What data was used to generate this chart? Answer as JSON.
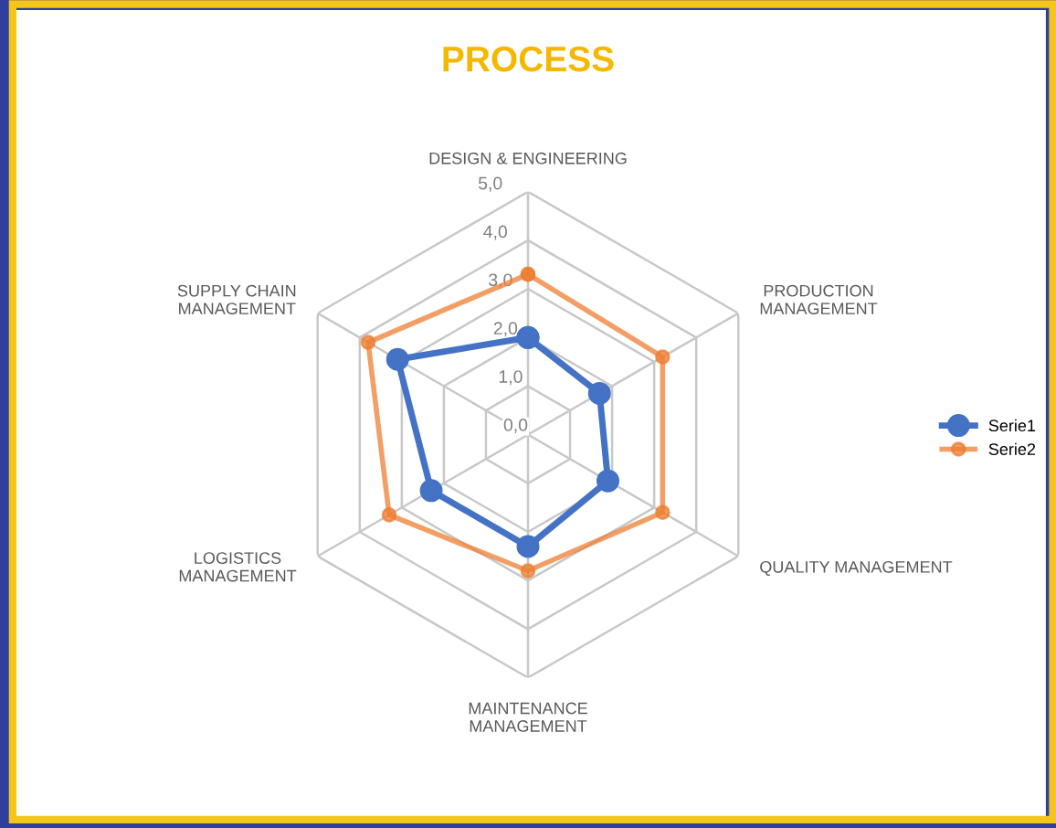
{
  "chart_data": {
    "type": "radar",
    "title": "PROCESS",
    "categories": [
      "DESIGN & ENGINEERING",
      "PRODUCTION\nMANAGEMENT",
      "QUALITY MANAGEMENT",
      "MAINTENANCE\nMANAGEMENT",
      "LOGISTICS\nMANAGEMENT",
      "SUPPLY CHAIN\nMANAGEMENT"
    ],
    "series": [
      {
        "name": "Serie1",
        "color": "#4472c4",
        "values": [
          2.0,
          1.7,
          1.9,
          2.3,
          2.3,
          3.1
        ]
      },
      {
        "name": "Serie2",
        "color": "#ed7d31",
        "values": [
          3.3,
          3.2,
          3.2,
          2.8,
          3.3,
          3.8
        ]
      }
    ],
    "ylim": [
      0,
      5
    ],
    "yticks": [
      {
        "value": 0,
        "label": "0,0"
      },
      {
        "value": 1,
        "label": "1,0"
      },
      {
        "value": 2,
        "label": "2,0"
      },
      {
        "value": 3,
        "label": "3,0"
      },
      {
        "value": 4,
        "label": "4,0"
      },
      {
        "value": 5,
        "label": "5,0"
      }
    ],
    "grid": true,
    "legend": "right",
    "marker": "circle",
    "line_style": "solid"
  }
}
